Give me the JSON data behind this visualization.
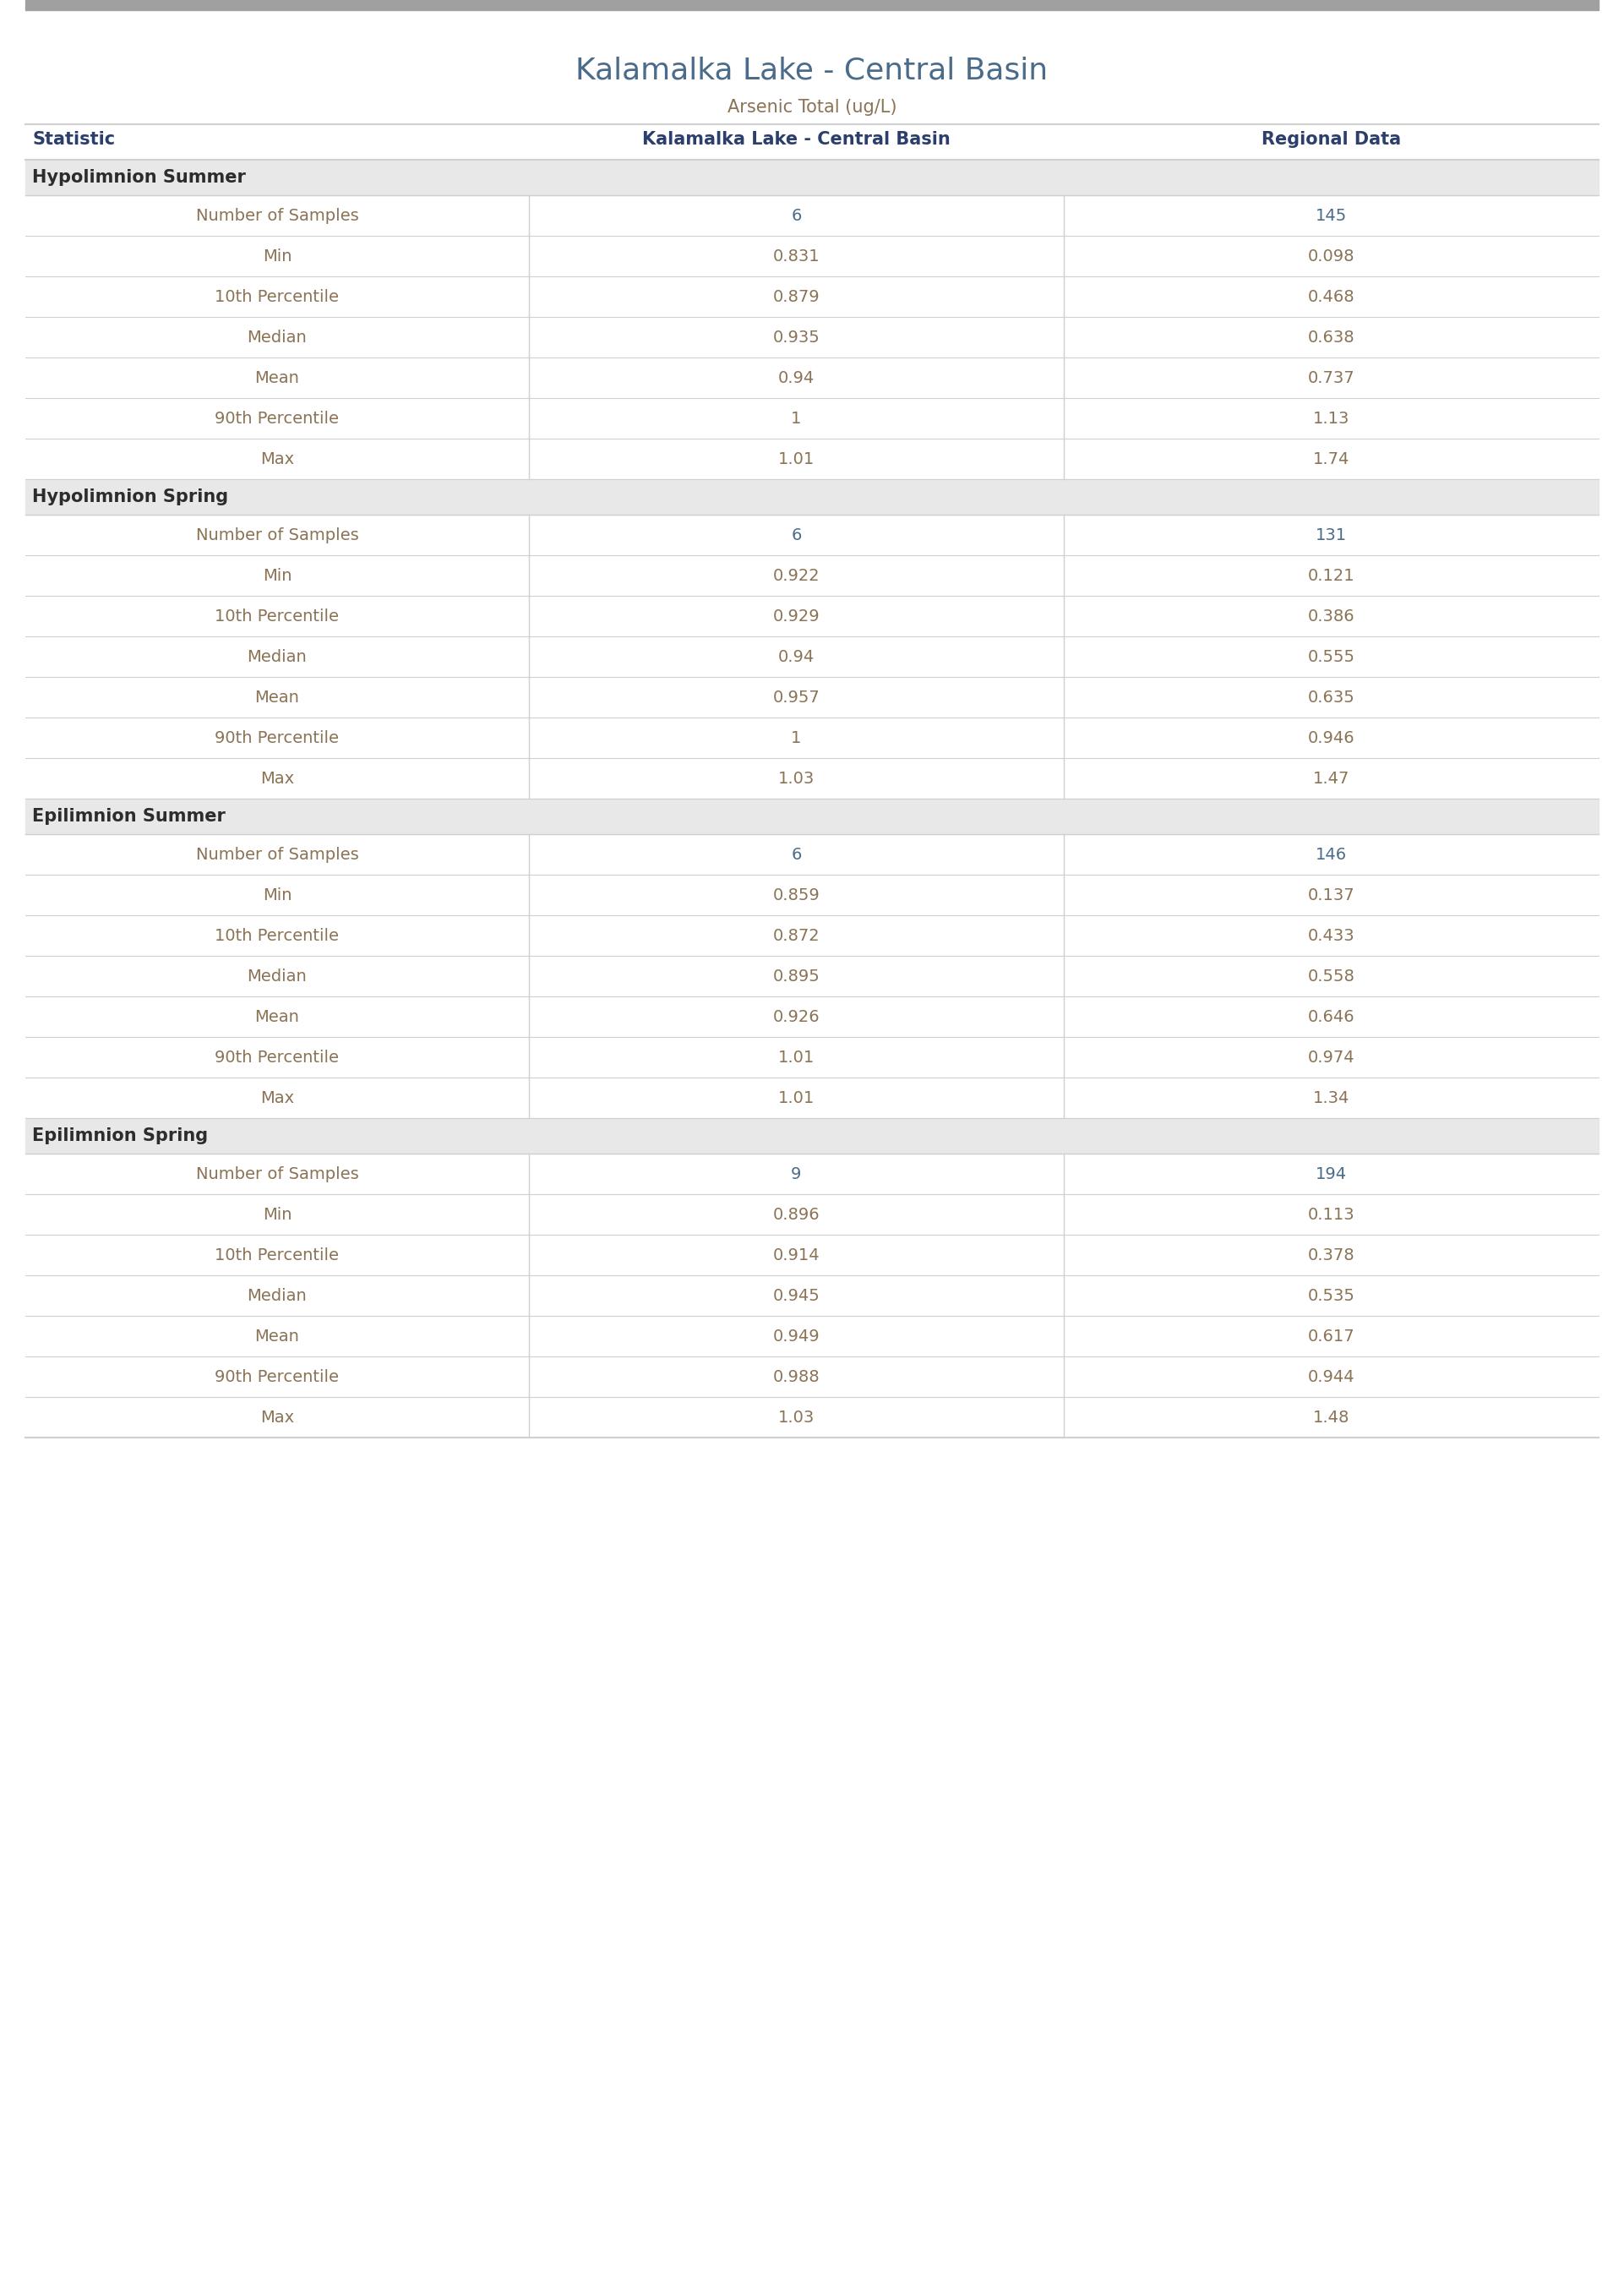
{
  "title": "Kalamalka Lake - Central Basin",
  "subtitle": "Arsenic Total (ug/L)",
  "col_headers": [
    "Statistic",
    "Kalamalka Lake - Central Basin",
    "Regional Data"
  ],
  "sections": [
    {
      "name": "Hypolimnion Summer",
      "rows": [
        [
          "Number of Samples",
          "6",
          "145"
        ],
        [
          "Min",
          "0.831",
          "0.098"
        ],
        [
          "10th Percentile",
          "0.879",
          "0.468"
        ],
        [
          "Median",
          "0.935",
          "0.638"
        ],
        [
          "Mean",
          "0.94",
          "0.737"
        ],
        [
          "90th Percentile",
          "1",
          "1.13"
        ],
        [
          "Max",
          "1.01",
          "1.74"
        ]
      ]
    },
    {
      "name": "Hypolimnion Spring",
      "rows": [
        [
          "Number of Samples",
          "6",
          "131"
        ],
        [
          "Min",
          "0.922",
          "0.121"
        ],
        [
          "10th Percentile",
          "0.929",
          "0.386"
        ],
        [
          "Median",
          "0.94",
          "0.555"
        ],
        [
          "Mean",
          "0.957",
          "0.635"
        ],
        [
          "90th Percentile",
          "1",
          "0.946"
        ],
        [
          "Max",
          "1.03",
          "1.47"
        ]
      ]
    },
    {
      "name": "Epilimnion Summer",
      "rows": [
        [
          "Number of Samples",
          "6",
          "146"
        ],
        [
          "Min",
          "0.859",
          "0.137"
        ],
        [
          "10th Percentile",
          "0.872",
          "0.433"
        ],
        [
          "Median",
          "0.895",
          "0.558"
        ],
        [
          "Mean",
          "0.926",
          "0.646"
        ],
        [
          "90th Percentile",
          "1.01",
          "0.974"
        ],
        [
          "Max",
          "1.01",
          "1.34"
        ]
      ]
    },
    {
      "name": "Epilimnion Spring",
      "rows": [
        [
          "Number of Samples",
          "9",
          "194"
        ],
        [
          "Min",
          "0.896",
          "0.113"
        ],
        [
          "10th Percentile",
          "0.914",
          "0.378"
        ],
        [
          "Median",
          "0.945",
          "0.535"
        ],
        [
          "Mean",
          "0.949",
          "0.617"
        ],
        [
          "90th Percentile",
          "0.988",
          "0.944"
        ],
        [
          "Max",
          "1.03",
          "1.48"
        ]
      ]
    }
  ],
  "title_color": "#4a6b8a",
  "subtitle_color": "#8b7355",
  "section_header_bg": "#e8e8e8",
  "section_header_text_color": "#2c2c2c",
  "stat_col_text_color": "#8b7355",
  "number_col_text_color": "#8b7355",
  "col_header_text_color": "#2c3e6b",
  "divider_color": "#d0d0d0",
  "top_bar_color": "#a0a0a0",
  "background_color": "#ffffff",
  "num_samples_color": "#4a6b8a",
  "n_samples_regional_color": "#4a6b8a"
}
